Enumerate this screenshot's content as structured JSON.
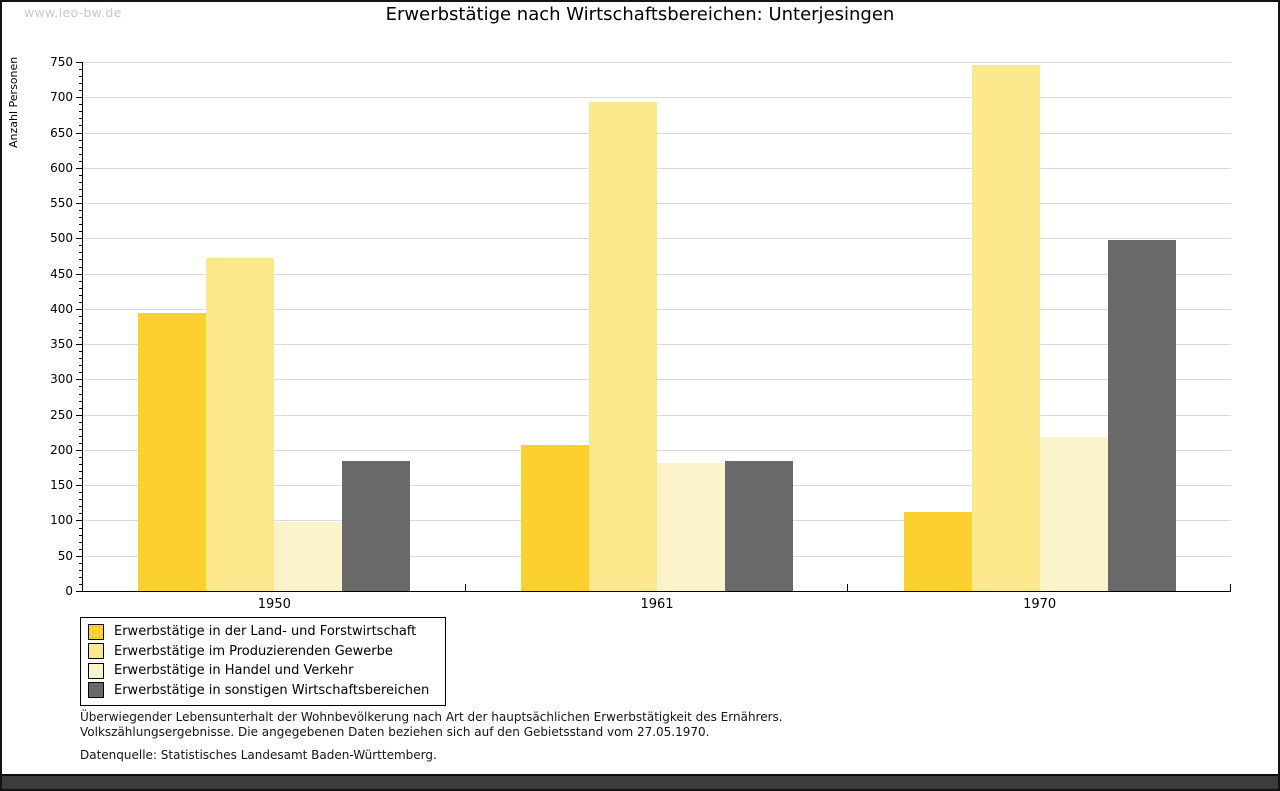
{
  "watermark": "www.leo-bw.de",
  "chart_data": {
    "type": "bar",
    "title": "Erwerbstätige nach Wirtschaftsbereichen: Unterjesingen",
    "ylabel": "Anzahl Personen",
    "xlabel": "",
    "categories": [
      "1950",
      "1961",
      "1970"
    ],
    "series": [
      {
        "name": "Erwerbstätige in der Land- und Forstwirtschaft",
        "color": "#FCD12F",
        "values": [
          394,
          207,
          112
        ]
      },
      {
        "name": "Erwerbstätige im Produzierenden Gewerbe",
        "color": "#FBE88C",
        "values": [
          472,
          694,
          746
        ]
      },
      {
        "name": "Erwerbstätige in Handel und Verkehr",
        "color": "#FBF3C9",
        "values": [
          98,
          181,
          219
        ]
      },
      {
        "name": "Erwerbstätige in sonstigen Wirtschaftsbereichen",
        "color": "#696969",
        "values": [
          185,
          185,
          498
        ]
      }
    ],
    "ylim": [
      0,
      750
    ],
    "ytick_step": 50,
    "yminor_step": 10,
    "grid": true,
    "legend_position": "bottom-left"
  },
  "footnotes": {
    "line1": "Überwiegender Lebensunterhalt der Wohnbevölkerung nach Art der hauptsächlichen Erwerbstätigkeit des Ernährers.",
    "line2": "Volkszählungsergebnisse. Die angegebenen Daten beziehen sich auf den Gebietsstand vom 27.05.1970.",
    "source": "Datenquelle: Statistisches Landesamt Baden-Württemberg."
  }
}
